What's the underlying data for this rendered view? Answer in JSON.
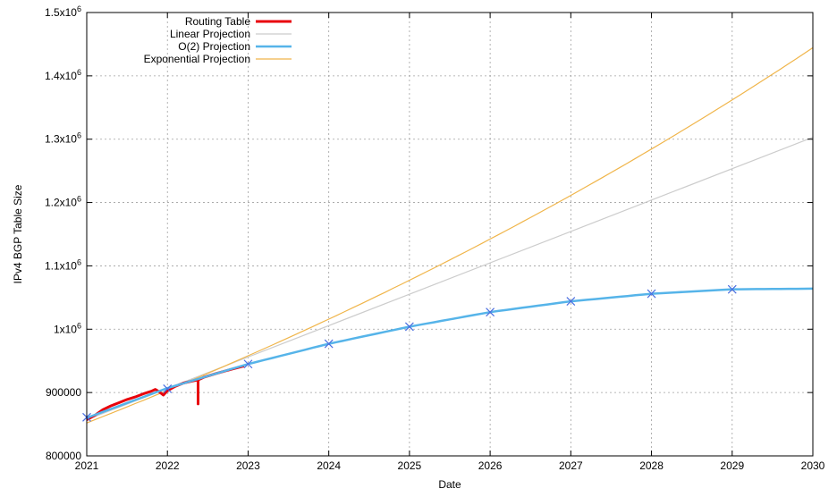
{
  "chart_data": {
    "type": "line",
    "xlabel": "Date",
    "ylabel": "IPv4 BGP Table Size",
    "xlim": [
      2021,
      2030
    ],
    "ylim": [
      800000,
      1500000
    ],
    "grid": true,
    "legend_position": "top-left",
    "x_ticks": [
      2021,
      2022,
      2023,
      2024,
      2025,
      2026,
      2027,
      2028,
      2029,
      2030
    ],
    "x_tick_labels": [
      "2021",
      "2022",
      "2023",
      "2024",
      "2025",
      "2026",
      "2027",
      "2028",
      "2029",
      "2030"
    ],
    "y_ticks": [
      {
        "value": 800000,
        "mantissa": "800000",
        "exp": ""
      },
      {
        "value": 900000,
        "mantissa": "900000",
        "exp": ""
      },
      {
        "value": 1000000,
        "mantissa": "1x10",
        "exp": "6"
      },
      {
        "value": 1100000,
        "mantissa": "1.1x10",
        "exp": "6"
      },
      {
        "value": 1200000,
        "mantissa": "1.2x10",
        "exp": "6"
      },
      {
        "value": 1300000,
        "mantissa": "1.3x10",
        "exp": "6"
      },
      {
        "value": 1400000,
        "mantissa": "1.4x10",
        "exp": "6"
      },
      {
        "value": 1500000,
        "mantissa": "1.5x10",
        "exp": "6"
      }
    ],
    "series": [
      {
        "name": "Routing Table",
        "color": "#e8000b",
        "style": "thick-line",
        "x": [
          2021.0,
          2021.1,
          2021.2,
          2021.3,
          2021.4,
          2021.5,
          2021.6,
          2021.7,
          2021.8,
          2021.85,
          2021.9,
          2021.95,
          2022.0,
          2022.1,
          2022.2,
          2022.3,
          2022.38,
          2022.38,
          2022.38,
          2022.45,
          2022.6,
          2022.8,
          2022.95
        ],
        "y": [
          857000,
          864000,
          873000,
          879000,
          884000,
          889000,
          893000,
          898000,
          902000,
          905000,
          901000,
          896000,
          903000,
          910000,
          915000,
          918000,
          920000,
          882000,
          920000,
          924000,
          930000,
          937000,
          942000
        ]
      },
      {
        "name": "Linear Projection",
        "color": "#cccccc",
        "style": "thin-line",
        "x": [
          2021,
          2030
        ],
        "y": [
          857000,
          1303000
        ]
      },
      {
        "name": "O(2) Projection",
        "color": "#56b4e9",
        "style": "line-with-x-markers",
        "x": [
          2021,
          2022,
          2023,
          2024,
          2025,
          2026,
          2027,
          2028,
          2029,
          2030
        ],
        "y": [
          860000,
          907000,
          945000,
          977000,
          1004000,
          1027000,
          1044000,
          1056000,
          1063000,
          1064000
        ],
        "marker_x": [
          2021,
          2022,
          2023,
          2024,
          2025,
          2026,
          2027,
          2028,
          2029
        ],
        "marker_y": [
          861000,
          906000,
          945000,
          977000,
          1004000,
          1027000,
          1044000,
          1056000,
          1063000
        ]
      },
      {
        "name": "Exponential Projection",
        "color": "#f0b54a",
        "style": "thin-line",
        "growth_per_year": 1.0604,
        "x": [
          2021,
          2030
        ],
        "y": [
          852000,
          1465000
        ]
      }
    ]
  }
}
